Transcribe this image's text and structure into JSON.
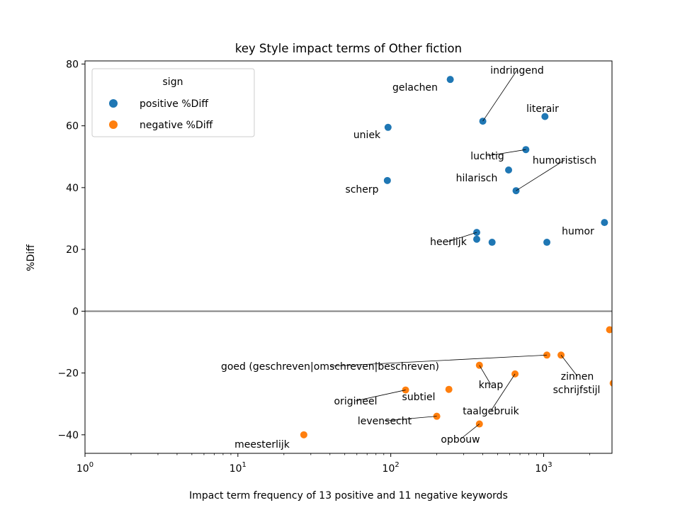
{
  "chart_data": {
    "type": "scatter",
    "title": "key Style impact terms of Other fiction",
    "xlabel": "Impact term frequency of 13 positive and 11 negative keywords",
    "ylabel": "%Diff",
    "x_scale": "log",
    "xlim": [
      1,
      2800
    ],
    "ylim": [
      -46,
      81
    ],
    "x_ticks": [
      1,
      10,
      100,
      1000
    ],
    "x_tick_labels": [
      "10",
      "10",
      "10",
      "10"
    ],
    "x_tick_exponents": [
      "0",
      "1",
      "2",
      "3"
    ],
    "y_ticks": [
      80,
      60,
      40,
      20,
      0,
      -20,
      -40
    ],
    "y_tick_labels": [
      "80",
      "60",
      "40",
      "20",
      "0",
      "−20",
      "−40"
    ],
    "reference_line_y": 0,
    "grid": false,
    "legend": {
      "title": "sign",
      "placement": "top-left"
    },
    "series": [
      {
        "name": "positive %Diff",
        "color": "#1f77b4",
        "points": [
          {
            "x": 245,
            "y": 75,
            "label": "gelachen"
          },
          {
            "x": 400,
            "y": 61.5,
            "label": "indringend"
          },
          {
            "x": 1020,
            "y": 63,
            "label": "literair"
          },
          {
            "x": 96,
            "y": 59.5,
            "label": "uniek"
          },
          {
            "x": 765,
            "y": 52.3,
            "label": "luchtig"
          },
          {
            "x": 590,
            "y": 45.7,
            "label": "hilarisch"
          },
          {
            "x": 660,
            "y": 39,
            "label": "humoristisch"
          },
          {
            "x": 95,
            "y": 42.3,
            "label": "scherp"
          },
          {
            "x": 2500,
            "y": 28.7,
            "label": "humor"
          },
          {
            "x": 365,
            "y": 25.5,
            "label": "heerlijk"
          },
          {
            "x": 365,
            "y": 23.3,
            "label": ""
          },
          {
            "x": 460,
            "y": 22.3,
            "label": ""
          },
          {
            "x": 1050,
            "y": 22.3,
            "label": ""
          }
        ]
      },
      {
        "name": "negative %Diff",
        "color": "#ff7f0e",
        "points": [
          {
            "x": 2700,
            "y": -6,
            "label": ""
          },
          {
            "x": 1050,
            "y": -14.2,
            "label": "goed (geschreven|omschreven|beschreven)"
          },
          {
            "x": 1300,
            "y": -14.2,
            "label": "zinnen"
          },
          {
            "x": 380,
            "y": -17.5,
            "label": "knap"
          },
          {
            "x": 650,
            "y": -20.3,
            "label": "taalgebruik"
          },
          {
            "x": 2850,
            "y": -23.3,
            "label": "schrijfstijl"
          },
          {
            "x": 125,
            "y": -25.5,
            "label": "origineel"
          },
          {
            "x": 240,
            "y": -25.3,
            "label": "subtiel"
          },
          {
            "x": 200,
            "y": -34,
            "label": "levensecht"
          },
          {
            "x": 380,
            "y": -36.5,
            "label": "opbouw"
          },
          {
            "x": 27,
            "y": -40,
            "label": "meesterlijk"
          }
        ]
      }
    ]
  }
}
